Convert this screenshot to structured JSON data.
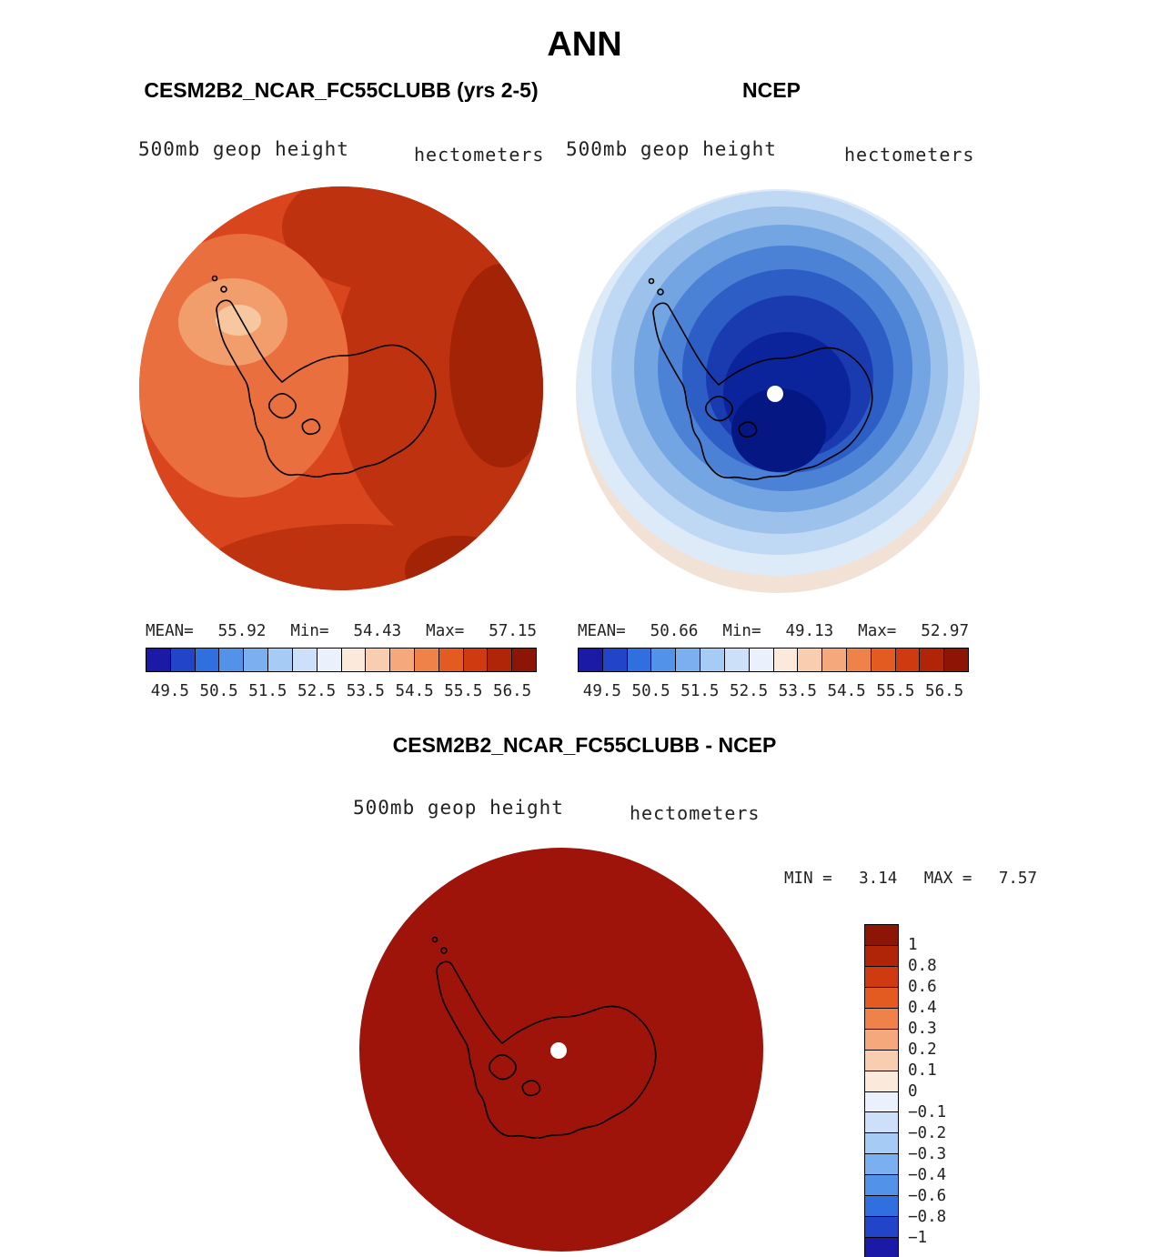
{
  "title": "ANN",
  "model_panel": {
    "title": "CESM2B2_NCAR_FC55CLUBB (yrs 2-5)",
    "field_label": "500mb geop height",
    "units_label": "hectometers",
    "stats": {
      "mean_label": "MEAN=",
      "mean_value": "55.92",
      "min_label": "Min=",
      "min_value": "54.43",
      "max_label": "Max=",
      "max_value": "57.15"
    }
  },
  "obs_panel": {
    "title": "NCEP",
    "field_label": "500mb geop height",
    "units_label": "hectometers",
    "stats": {
      "mean_label": "MEAN=",
      "mean_value": "50.66",
      "min_label": "Min=",
      "min_value": "49.13",
      "max_label": "Max=",
      "max_value": "52.97"
    }
  },
  "diff_panel": {
    "title": "CESM2B2_NCAR_FC55CLUBB - NCEP",
    "field_label": "500mb geop height",
    "units_label": "hectometers",
    "stats": {
      "min_label": "MIN =",
      "min_value": "3.14",
      "max_label": "MAX =",
      "max_value": "7.57"
    }
  },
  "colorbar": {
    "tick_labels": [
      "49.5",
      "50.5",
      "51.5",
      "52.5",
      "53.5",
      "54.5",
      "55.5",
      "56.5"
    ],
    "colors": [
      "#1A1AA6",
      "#2244C8",
      "#2F6FE0",
      "#5292E8",
      "#7BB0F0",
      "#A6CBF5",
      "#CCE0FA",
      "#EAF1FC",
      "#FBE9DC",
      "#F8CDB0",
      "#F4A87B",
      "#EE8248",
      "#E45B22",
      "#CF3A10",
      "#B02408",
      "#8D1505"
    ]
  },
  "diff_colorbar": {
    "labels": [
      "1",
      "0.8",
      "0.6",
      "0.4",
      "0.3",
      "0.2",
      "0.1",
      "0",
      "−0.1",
      "−0.2",
      "−0.3",
      "−0.4",
      "−0.6",
      "−0.8",
      "−1"
    ],
    "colors": [
      "#8D1505",
      "#B02408",
      "#CF3A10",
      "#E45B22",
      "#EE8248",
      "#F4A87B",
      "#F8CDB0",
      "#FBE9DC",
      "#EAF1FC",
      "#CCE0FA",
      "#A6CBF5",
      "#7BB0F0",
      "#5292E8",
      "#2F6FE0",
      "#2244C8",
      "#1A1AA6"
    ]
  },
  "maps": {
    "coastline": "#000000",
    "pole_dot": "#FFFFFF",
    "model": {
      "base": "#D9451D",
      "shade_dark": "#BE3210",
      "shade_darker": "#A22306",
      "shade_light": "#E96F3E",
      "shade_lighter": "#F29E6C",
      "shade_lightest": "#F7C89F"
    },
    "obs": {
      "ring_cream": "#F2E1D5",
      "ring1": "#DDEAF8",
      "ring2": "#BFD8F3",
      "ring3": "#9CC2EC",
      "ring4": "#72A5E1",
      "ring5": "#4B82D6",
      "ring6": "#2C5EC6",
      "ring7": "#1A3BB0",
      "core": "#0B239B",
      "core_dark": "#041782"
    },
    "diff": {
      "fill": "#9E130A"
    }
  },
  "chart_data": {
    "type": "heatmap",
    "title": "ANN",
    "description": "South polar stereographic filled-contour maps of 500mb geopotential height (hectometers): model, reanalysis, and model-minus-reanalysis difference.",
    "panels": [
      {
        "name": "CESM2B2_NCAR_FC55CLUBB (yrs 2-5)",
        "field": "500mb geop height",
        "units": "hectometers",
        "mean": 55.92,
        "min": 54.43,
        "max": 57.15
      },
      {
        "name": "NCEP",
        "field": "500mb geop height",
        "units": "hectometers",
        "mean": 50.66,
        "min": 49.13,
        "max": 52.97
      },
      {
        "name": "CESM2B2_NCAR_FC55CLUBB - NCEP",
        "field": "500mb geop height",
        "units": "hectometers",
        "min": 3.14,
        "max": 7.57
      }
    ],
    "colorbar_levels": [
      49.5,
      50.5,
      51.5,
      52.5,
      53.5,
      54.5,
      55.5,
      56.5
    ],
    "diff_levels": [
      1,
      0.8,
      0.6,
      0.4,
      0.3,
      0.2,
      0.1,
      0,
      -0.1,
      -0.2,
      -0.3,
      -0.4,
      -0.6,
      -0.8,
      -1
    ],
    "legend_position": "below each top panel; vertical bar right of difference panel",
    "grid": false
  }
}
